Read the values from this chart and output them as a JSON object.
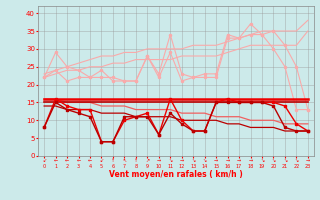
{
  "x": [
    0,
    1,
    2,
    3,
    4,
    5,
    6,
    7,
    8,
    9,
    10,
    11,
    12,
    13,
    14,
    15,
    16,
    17,
    18,
    19,
    20,
    21,
    22,
    23
  ],
  "bg_color": "#cceaea",
  "grid_color": "#999999",
  "light_pink": "#f9aaaa",
  "medium_red": "#f06060",
  "bright_red": "#ee0000",
  "dark_red": "#bb0000",
  "xlabel": "Vent moyen/en rafales ( km/h )",
  "ylim": [
    0,
    42
  ],
  "xlim": [
    -0.5,
    23.5
  ],
  "yticks": [
    0,
    5,
    10,
    15,
    20,
    25,
    30,
    35,
    40
  ],
  "arrows": [
    "↙",
    "←",
    "←",
    "←",
    "←",
    "↙",
    "↑",
    "↖",
    "↑",
    "↗",
    "→",
    "↘",
    "→",
    "↘",
    "↘",
    "→",
    "→",
    "→",
    "→",
    "↘",
    "↘",
    "↘",
    "↘",
    "→"
  ],
  "jagged_pink1": [
    22,
    29,
    25,
    24,
    22,
    24,
    21,
    21,
    21,
    28,
    23,
    34,
    23,
    22,
    23,
    23,
    34,
    33,
    37,
    34,
    35,
    31,
    25,
    13
  ],
  "jagged_pink2": [
    22,
    24,
    21,
    22,
    22,
    22,
    22,
    21,
    21,
    28,
    22,
    29,
    21,
    22,
    22,
    22,
    33,
    33,
    34,
    34,
    30,
    25,
    13,
    13
  ],
  "diag_pink1": [
    23,
    24,
    25,
    26,
    27,
    28,
    28,
    29,
    29,
    30,
    30,
    30,
    30,
    31,
    31,
    31,
    32,
    33,
    34,
    35,
    35,
    35,
    35,
    38
  ],
  "diag_pink2": [
    22,
    23,
    24,
    24,
    25,
    25,
    26,
    26,
    27,
    27,
    27,
    27,
    28,
    28,
    28,
    28,
    29,
    30,
    31,
    31,
    31,
    31,
    31,
    35
  ],
  "flat_red1": [
    16,
    16,
    16,
    16,
    16,
    16,
    16,
    16,
    16,
    16,
    16,
    16,
    16,
    16,
    16,
    16,
    16,
    16,
    16,
    16,
    16,
    16,
    16,
    16
  ],
  "flat_red2": [
    15,
    15,
    15,
    15,
    15,
    15,
    15,
    15,
    15,
    15,
    15,
    15,
    15,
    15,
    15,
    15,
    15,
    15,
    15,
    15,
    15,
    15,
    15,
    15
  ],
  "decline_pink": [
    16,
    16,
    15,
    15,
    15,
    14,
    14,
    14,
    13,
    13,
    13,
    13,
    12,
    12,
    12,
    11,
    11,
    11,
    10,
    10,
    10,
    9,
    9,
    9
  ],
  "decline_dark": [
    14,
    14,
    13,
    13,
    13,
    12,
    12,
    12,
    11,
    11,
    11,
    11,
    10,
    10,
    10,
    10,
    9,
    9,
    8,
    8,
    8,
    7,
    7,
    7
  ],
  "jagged_red1": [
    8,
    16,
    14,
    13,
    13,
    4,
    4,
    10,
    11,
    12,
    6,
    16,
    10,
    7,
    7,
    15,
    16,
    15,
    15,
    15,
    15,
    14,
    9,
    7
  ],
  "jagged_red2": [
    8,
    15,
    13,
    12,
    11,
    4,
    4,
    11,
    11,
    11,
    6,
    12,
    9,
    7,
    7,
    15,
    15,
    15,
    15,
    15,
    14,
    8,
    7,
    7
  ]
}
